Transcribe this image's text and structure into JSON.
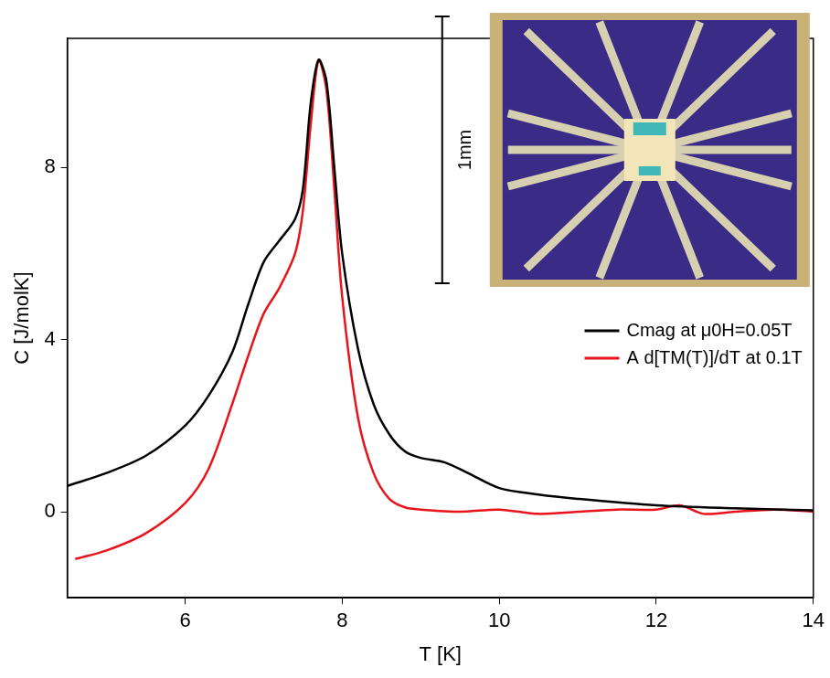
{
  "chart_data": {
    "type": "line",
    "x_label": "T [K]",
    "y_label": "C [J/molK]",
    "annotations": [
      "1mm"
    ],
    "xlim": [
      4.5,
      14
    ],
    "xticks": [
      6,
      8,
      10,
      12,
      14
    ],
    "ylim": [
      -2,
      11
    ],
    "yticks": [
      0,
      4,
      8
    ],
    "grid": false,
    "legend": "right",
    "series": [
      {
        "name": "Cmag at μ0H=0.05T",
        "color": "#000000",
        "line_style": "solid",
        "x": [
          4.5,
          5.0,
          5.5,
          6.0,
          6.3,
          6.6,
          6.8,
          7.0,
          7.2,
          7.4,
          7.5,
          7.6,
          7.7,
          7.8,
          7.9,
          8.0,
          8.2,
          8.4,
          8.6,
          8.8,
          9.0,
          9.3,
          9.6,
          10.0,
          10.5,
          11.0,
          12.0,
          13.0,
          14.0
        ],
        "values": [
          0.6,
          0.9,
          1.3,
          2.0,
          2.7,
          3.7,
          4.8,
          5.8,
          6.3,
          6.8,
          7.5,
          9.5,
          10.5,
          10.0,
          8.0,
          6.0,
          3.8,
          2.5,
          1.8,
          1.4,
          1.25,
          1.15,
          0.9,
          0.55,
          0.4,
          0.3,
          0.15,
          0.08,
          0.03
        ]
      },
      {
        "name": "A d[TM(T)]/dT at 0.1T",
        "color": "#e8141b",
        "line_style": "solid",
        "x": [
          4.6,
          5.0,
          5.5,
          6.0,
          6.3,
          6.6,
          6.8,
          7.0,
          7.2,
          7.4,
          7.5,
          7.6,
          7.7,
          7.8,
          7.9,
          8.0,
          8.2,
          8.4,
          8.6,
          8.8,
          9.0,
          9.5,
          10.0,
          10.5,
          11.0,
          11.5,
          12.0,
          12.3,
          12.6,
          13.0,
          13.5,
          14.0
        ],
        "values": [
          -1.1,
          -0.9,
          -0.5,
          0.2,
          1.0,
          2.5,
          3.6,
          4.6,
          5.2,
          6.0,
          7.0,
          9.0,
          10.5,
          9.8,
          7.5,
          5.0,
          2.2,
          0.9,
          0.3,
          0.1,
          0.05,
          0.0,
          0.05,
          -0.05,
          0.0,
          0.05,
          0.05,
          0.15,
          -0.05,
          0.0,
          0.05,
          0.0
        ]
      }
    ]
  }
}
